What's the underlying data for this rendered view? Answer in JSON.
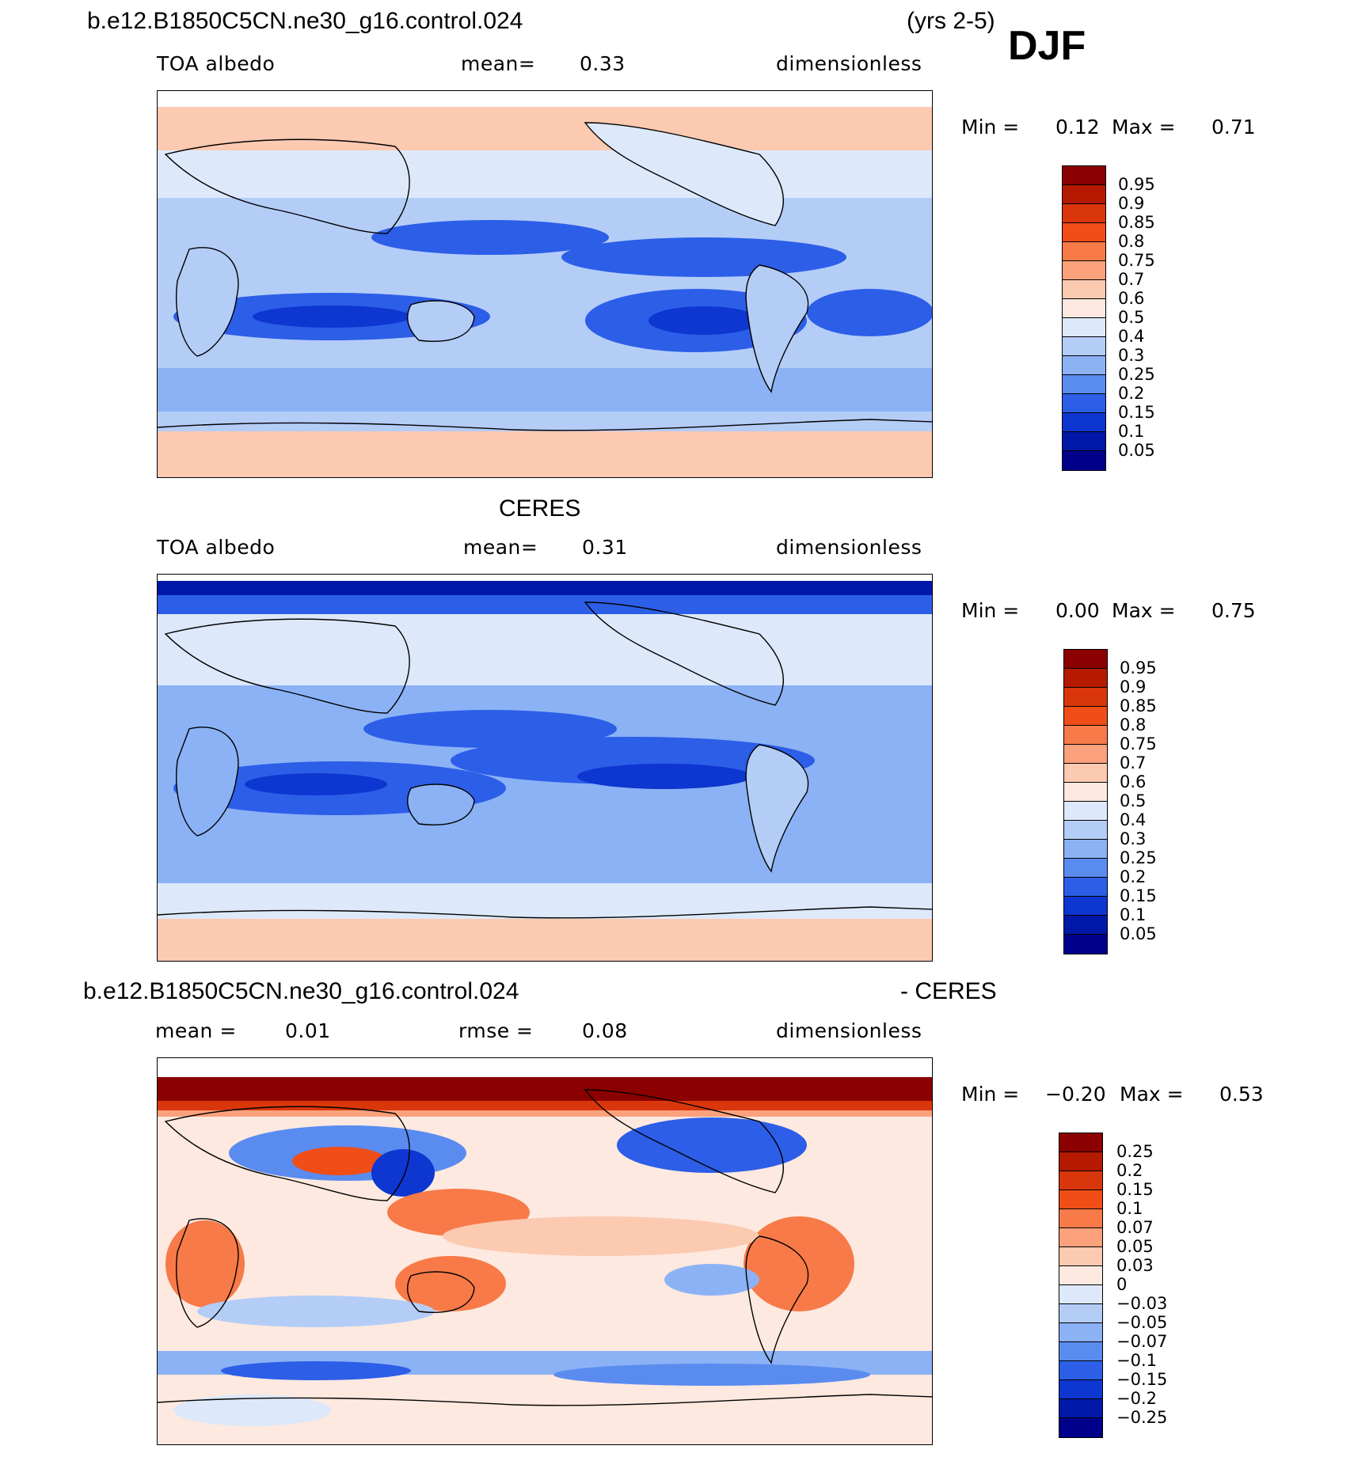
{
  "header": {
    "case_name": "b.e12.B1850C5CN.ne30_g16.control.024",
    "years": "(yrs 2-5)",
    "season": "DJF"
  },
  "panels": [
    {
      "id": "model",
      "title": "",
      "left_label": "TOA albedo",
      "center_label": "mean=",
      "center_value": "0.33",
      "units": "dimensionless",
      "min_label": "Min =",
      "min_value": "0.12",
      "max_label": "Max =",
      "max_value": "0.71",
      "levels": [
        "0.95",
        "0.9",
        "0.85",
        "0.8",
        "0.75",
        "0.7",
        "0.6",
        "0.5",
        "0.4",
        "0.3",
        "0.25",
        "0.2",
        "0.15",
        "0.1",
        "0.05"
      ],
      "colors": [
        "#8b0000",
        "#b51a00",
        "#d9370b",
        "#f04d17",
        "#f77a48",
        "#fba17c",
        "#fcc9b1",
        "#fde9df",
        "#dde9fa",
        "#b4cdf7",
        "#8bb2f5",
        "#5a8cf0",
        "#2c5ee8",
        "#0e36d0",
        "#0018a8",
        "#00008b"
      ]
    },
    {
      "id": "obs",
      "title": "CERES",
      "left_label": "TOA albedo",
      "center_label": "mean=",
      "center_value": "0.31",
      "units": "dimensionless",
      "min_label": "Min =",
      "min_value": "0.00",
      "max_label": "Max =",
      "max_value": "0.75",
      "levels": [
        "0.95",
        "0.9",
        "0.85",
        "0.8",
        "0.75",
        "0.7",
        "0.6",
        "0.5",
        "0.4",
        "0.3",
        "0.25",
        "0.2",
        "0.15",
        "0.1",
        "0.05"
      ],
      "colors": [
        "#8b0000",
        "#b51a00",
        "#d9370b",
        "#f04d17",
        "#f77a48",
        "#fba17c",
        "#fcc9b1",
        "#fde9df",
        "#dde9fa",
        "#b4cdf7",
        "#8bb2f5",
        "#5a8cf0",
        "#2c5ee8",
        "#0e36d0",
        "#0018a8",
        "#00008b"
      ]
    },
    {
      "id": "diff",
      "title_left": "b.e12.B1850C5CN.ne30_g16.control.024",
      "title_right": "- CERES",
      "left_label": "mean =",
      "left_value": "0.01",
      "center_label": "rmse =",
      "center_value": "0.08",
      "units": "dimensionless",
      "min_label": "Min =",
      "min_value": "−0.20",
      "max_label": "Max =",
      "max_value": "0.53",
      "levels": [
        "0.25",
        "0.2",
        "0.15",
        "0.1",
        "0.07",
        "0.05",
        "0.03",
        "0",
        "−0.03",
        "−0.05",
        "−0.07",
        "−0.1",
        "−0.15",
        "−0.2",
        "−0.25"
      ],
      "colors": [
        "#8b0000",
        "#b51a00",
        "#d9370b",
        "#f04d17",
        "#f77a48",
        "#fba17c",
        "#fcc9b1",
        "#fde9df",
        "#dde9fa",
        "#b4cdf7",
        "#8bb2f5",
        "#5a8cf0",
        "#2c5ee8",
        "#0e36d0",
        "#0018a8",
        "#00008b"
      ]
    }
  ]
}
